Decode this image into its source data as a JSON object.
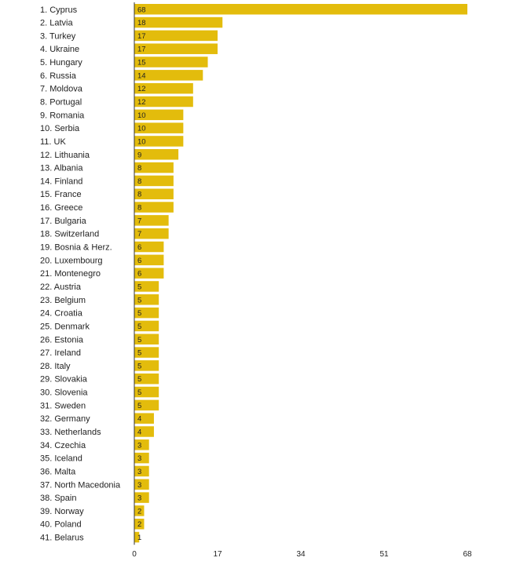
{
  "chart_data": {
    "type": "bar",
    "orientation": "horizontal",
    "title": "",
    "xlabel": "",
    "ylabel": "",
    "xlim": [
      0,
      68
    ],
    "xticks": [
      0,
      17,
      34,
      51,
      68
    ],
    "bar_color": "#e3bc0c",
    "categories": [
      "1. Cyprus",
      "2. Latvia",
      "3. Turkey",
      "4. Ukraine",
      "5. Hungary",
      "6. Russia",
      "7. Moldova",
      "8. Portugal",
      "9. Romania",
      "10. Serbia",
      "11. UK",
      "12. Lithuania",
      "13. Albania",
      "14. Finland",
      "15. France",
      "16. Greece",
      "17. Bulgaria",
      "18. Switzerland",
      "19. Bosnia & Herz.",
      "20. Luxembourg",
      "21. Montenegro",
      "22. Austria",
      "23. Belgium",
      "24. Croatia",
      "25. Denmark",
      "26. Estonia",
      "27. Ireland",
      "28. Italy",
      "29. Slovakia",
      "30. Slovenia",
      "31. Sweden",
      "32. Germany",
      "33. Netherlands",
      "34. Czechia",
      "35. Iceland",
      "36. Malta",
      "37. North Macedonia",
      "38. Spain",
      "39. Norway",
      "40. Poland",
      "41. Belarus"
    ],
    "values": [
      68,
      18,
      17,
      17,
      15,
      14,
      12,
      12,
      10,
      10,
      10,
      9,
      8,
      8,
      8,
      8,
      7,
      7,
      6,
      6,
      6,
      5,
      5,
      5,
      5,
      5,
      5,
      5,
      5,
      5,
      5,
      4,
      4,
      3,
      3,
      3,
      3,
      3,
      2,
      2,
      1
    ]
  }
}
